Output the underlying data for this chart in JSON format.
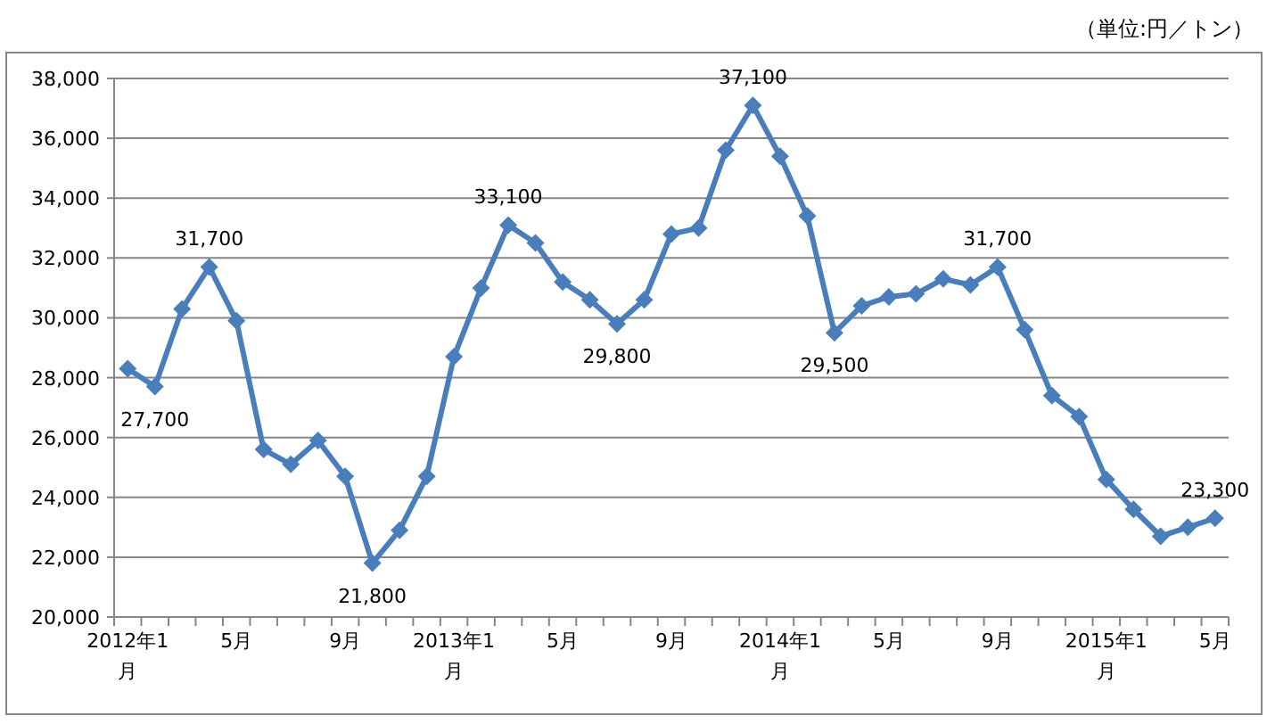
{
  "chart_data": {
    "type": "line",
    "annotations": [
      "（単位:円／トン）"
    ],
    "categories": [
      "2012年1月",
      null,
      null,
      null,
      "5月",
      null,
      null,
      null,
      "9月",
      null,
      null,
      null,
      "2013年1月",
      null,
      null,
      null,
      "5月",
      null,
      null,
      null,
      "9月",
      null,
      null,
      null,
      "2014年1月",
      null,
      null,
      null,
      "5月",
      null,
      null,
      null,
      "9月",
      null,
      null,
      null,
      "2015年1月",
      null,
      null,
      null,
      "5月"
    ],
    "series": [
      {
        "color": "#4a7ebb",
        "values": [
          28300,
          27700,
          30300,
          31700,
          29900,
          25600,
          25100,
          25900,
          24700,
          21800,
          22900,
          24700,
          28700,
          31000,
          33100,
          32500,
          31200,
          30600,
          29800,
          30600,
          32800,
          33000,
          35600,
          37100,
          35400,
          33400,
          29500,
          30400,
          30700,
          30800,
          31300,
          31100,
          31700,
          29600,
          27400,
          26700,
          24600,
          23600,
          22700,
          23000,
          23300
        ],
        "value_labels": [
          null,
          "27,700",
          null,
          "31,700",
          null,
          null,
          null,
          null,
          null,
          "21,800",
          null,
          null,
          null,
          null,
          "33,100",
          null,
          null,
          null,
          "29,800",
          null,
          null,
          null,
          null,
          "37,100",
          null,
          null,
          "29,500",
          null,
          null,
          null,
          null,
          null,
          "31,700",
          null,
          null,
          null,
          null,
          null,
          null,
          null,
          "23,300"
        ]
      }
    ],
    "marker": "diamond",
    "line_style": "solid",
    "grid": "y",
    "ylim": [
      20000,
      38000
    ],
    "yticks": [
      {
        "value": 20000,
        "label": "20,000"
      },
      {
        "value": 22000,
        "label": "22,000"
      },
      {
        "value": 24000,
        "label": "24,000"
      },
      {
        "value": 26000,
        "label": "26,000"
      },
      {
        "value": 28000,
        "label": "28,000"
      },
      {
        "value": 30000,
        "label": "30,000"
      },
      {
        "value": 32000,
        "label": "32,000"
      },
      {
        "value": 34000,
        "label": "34,000"
      },
      {
        "value": 36000,
        "label": "36,000"
      },
      {
        "value": 38000,
        "label": "38,000"
      }
    ]
  }
}
